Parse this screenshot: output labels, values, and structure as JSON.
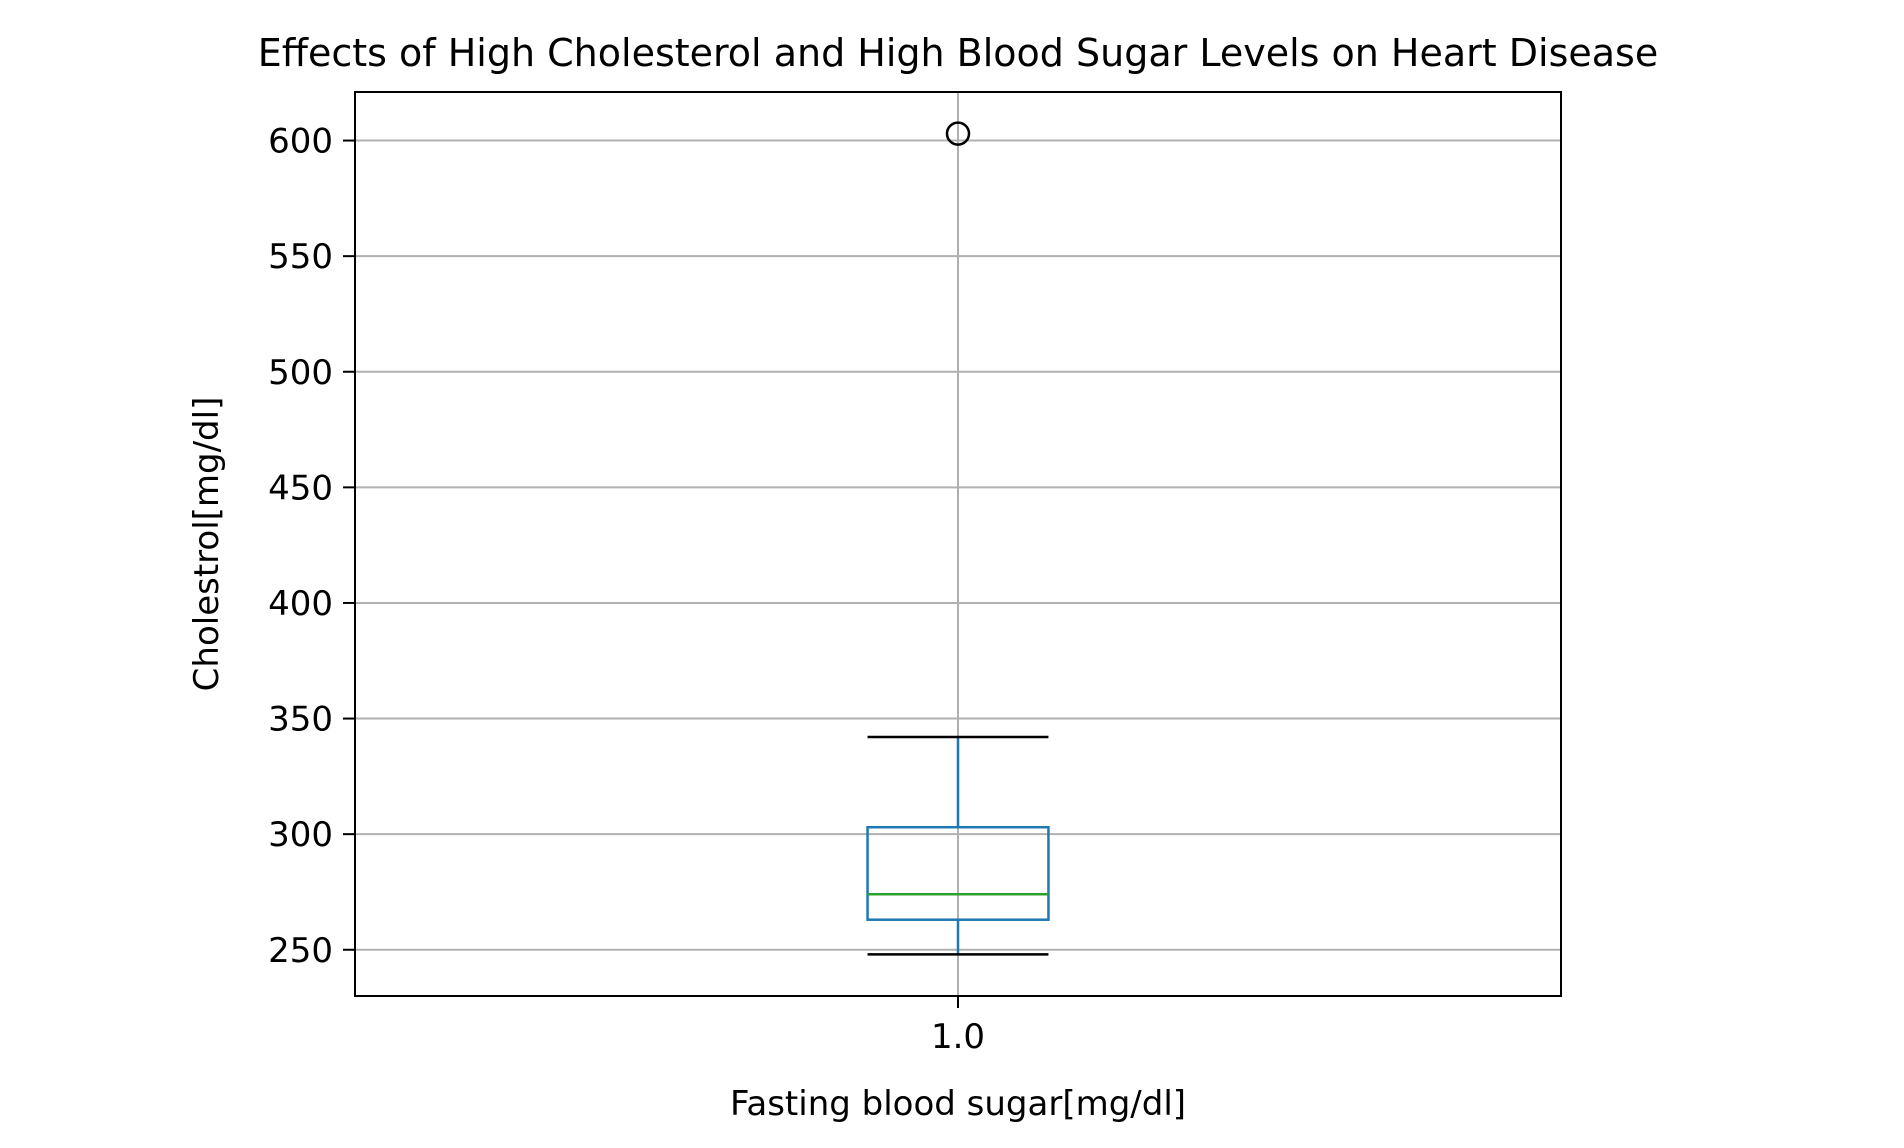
{
  "chart_data": {
    "type": "box",
    "title": "Effects of High Cholesterol and High Blood Sugar Levels on Heart Disease",
    "xlabel": "Fasting blood sugar[mg/dl]",
    "ylabel": "Cholestrol[mg/dl]",
    "categories": [
      "1.0"
    ],
    "ylim": [
      230,
      621
    ],
    "yticks": [
      250,
      300,
      350,
      400,
      450,
      500,
      550,
      600
    ],
    "grid": true,
    "boxes": [
      {
        "category": "1.0",
        "whisker_low": 248,
        "q1": 263,
        "median": 274,
        "q3": 303,
        "whisker_high": 342,
        "outliers": [
          603
        ]
      }
    ],
    "colors": {
      "box": "#1f77b4",
      "median": "#2ca02c",
      "caps": "#000000",
      "grid": "#b0b0b0"
    }
  }
}
